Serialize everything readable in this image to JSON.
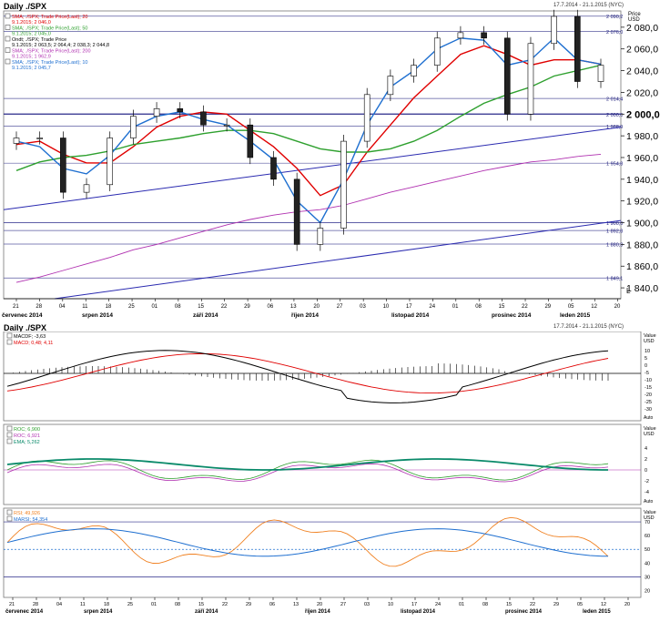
{
  "header": {
    "title": "Daily ./SPX",
    "range": "17.7.2014 - 21.1.2015 (NYC)"
  },
  "sub_header": {
    "title": "Daily ./SPX",
    "range": "17.7.2014 - 21.1.2015 (NYC)"
  },
  "price_axis": {
    "unit_top": "Price",
    "unit_bottom": "USD",
    "ticks": [
      "2 080,0",
      "2 060,0",
      "2 040,0",
      "2 020,0",
      "2 000,0",
      "1 980,0",
      "1 960,0",
      "1 940,0",
      "1 920,0",
      "1 900,0",
      "1 880,0",
      "1 860,0",
      "1 840,0"
    ]
  },
  "price_legend": [
    {
      "text": "SMA; ./SPX; Trade Price(Last); 20",
      "value": "9.1.2015; 2 046,0",
      "color": "#e00000"
    },
    {
      "text": "SMA; ./SPX; Trade Price(Last); 50",
      "value": "9.1.2015; 2 045,0",
      "color": "#2ea02e"
    },
    {
      "text": "Ondt; ./SPX; Trade Price",
      "value": "9.1.2015; 2 063,5; 2 064,4; 2 038,3; 2 044,8",
      "color": "#000000"
    },
    {
      "text": "SMA; ./SPX; Trade Price(Last); 200",
      "value": "9.1.2015; 1 962,9",
      "color": "#b030b0"
    },
    {
      "text": "SMA; ./SPX; Trade Price(Last); 10",
      "value": "9.1.2015; 2 045,7",
      "color": "#1e6fd0"
    }
  ],
  "hlines": [
    {
      "label": "2 090,2",
      "value": 2090.2
    },
    {
      "label": "2 076,0",
      "value": 2076
    },
    {
      "label": "2 014,4",
      "value": 2014.4
    },
    {
      "label": "2 000,0",
      "value": 2000
    },
    {
      "label": "1 988,9",
      "value": 1988.9
    },
    {
      "label": "1 954,8",
      "value": 1954.8
    },
    {
      "label": "1 900,0",
      "value": 1900
    },
    {
      "label": "1 892,8",
      "value": 1892.8
    },
    {
      "label": "1 880,3",
      "value": 1880.3
    },
    {
      "label": "1 849,1",
      "value": 1849.1
    }
  ],
  "date_ticks": [
    "21",
    "28",
    "04",
    "11",
    "18",
    "25",
    "01",
    "08",
    "15",
    "22",
    "29",
    "06",
    "13",
    "20",
    "27",
    "03",
    "10",
    "17",
    "24",
    "01",
    "08",
    "15",
    "22",
    "29",
    "05",
    "12",
    "20"
  ],
  "months": [
    "červenec 2014",
    "srpen 2014",
    "září 2014",
    "říjen 2014",
    "listopad 2014",
    "prosinec 2014",
    "leden 2015"
  ],
  "macd_legend": [
    {
      "text": "MACDF; -3,63",
      "color": "#000000"
    },
    {
      "text": "MACD; 0,48; 4,11",
      "color": "#e00000"
    }
  ],
  "macd_axis": {
    "unit_top": "Value",
    "unit_bottom": "USD",
    "ticks": [
      "10",
      "5",
      "0",
      "-5",
      "-10",
      "-15",
      "-20",
      "-25",
      "-30"
    ],
    "auto": "Auto"
  },
  "roc_legend": [
    {
      "text": "ROC; 6,900",
      "color": "#2ea02e"
    },
    {
      "text": "ROC; 6,921",
      "color": "#b030b0"
    },
    {
      "text": "EMA; 5,262",
      "color": "#0a8a6a"
    }
  ],
  "roc_axis": {
    "unit_top": "Value",
    "unit_bottom": "USD",
    "ticks": [
      "4",
      "2",
      "0",
      "-2",
      "-4"
    ],
    "auto": "Auto"
  },
  "rsi_legend": [
    {
      "text": "RSI; 49,926",
      "color": "#f08020"
    },
    {
      "text": "MARSI; 54,354",
      "color": "#1e6fd0"
    }
  ],
  "rsi_axis": {
    "unit_top": "Value",
    "unit_bottom": "USD",
    "ticks": [
      "70",
      "60",
      "50",
      "40",
      "30",
      "20"
    ]
  },
  "chart_data": {
    "type": "line",
    "title": "Daily ./SPX",
    "x": [
      "21.7",
      "28.7",
      "4.8",
      "11.8",
      "18.8",
      "25.8",
      "1.9",
      "8.9",
      "15.9",
      "22.9",
      "29.9",
      "6.10",
      "13.10",
      "20.10",
      "27.10",
      "3.11",
      "10.11",
      "17.11",
      "24.11",
      "1.12",
      "8.12",
      "15.12",
      "22.12",
      "29.12",
      "5.1",
      "12.1"
    ],
    "series": [
      {
        "name": "Ondt; ./SPX; Trade Price",
        "values": [
          1978,
          1978,
          1928,
          1935,
          1978,
          1998,
          2005,
          2002,
          1990,
          1990,
          1960,
          1940,
          1880,
          1895,
          1975,
          2018,
          2035,
          2045,
          2070,
          2075,
          2070,
          2000,
          2065,
          2090,
          2030,
          2045
        ]
      },
      {
        "name": "SMA; ./SPX; Trade Price(Last); 20",
        "values": [
          1972,
          1975,
          1963,
          1955,
          1955,
          1970,
          1988,
          1998,
          2002,
          2000,
          1985,
          1970,
          1950,
          1925,
          1935,
          1965,
          1990,
          2015,
          2035,
          2055,
          2063,
          2055,
          2045,
          2050,
          2050,
          2046
        ]
      },
      {
        "name": "SMA; ./SPX; Trade Price(Last); 50",
        "values": [
          1948,
          1956,
          1960,
          1962,
          1966,
          1972,
          1975,
          1978,
          1982,
          1985,
          1985,
          1982,
          1975,
          1968,
          1965,
          1965,
          1968,
          1975,
          1985,
          1998,
          2010,
          2018,
          2025,
          2035,
          2040,
          2045
        ]
      },
      {
        "name": "SMA; ./SPX; Trade Price(Last); 10",
        "values": [
          1975,
          1970,
          1950,
          1945,
          1962,
          1988,
          1998,
          2002,
          1995,
          1990,
          1975,
          1958,
          1920,
          1900,
          1940,
          1990,
          2025,
          2040,
          2060,
          2070,
          2068,
          2045,
          2050,
          2070,
          2050,
          2046
        ]
      },
      {
        "name": "SMA; ./SPX; Trade Price(Last); 200",
        "values": [
          1845,
          1850,
          1856,
          1862,
          1868,
          1875,
          1880,
          1886,
          1892,
          1898,
          1903,
          1907,
          1910,
          1912,
          1916,
          1922,
          1928,
          1933,
          1938,
          1943,
          1948,
          1952,
          1956,
          1958,
          1961,
          1963
        ]
      }
    ],
    "ylim": [
      1830,
      2095
    ]
  }
}
